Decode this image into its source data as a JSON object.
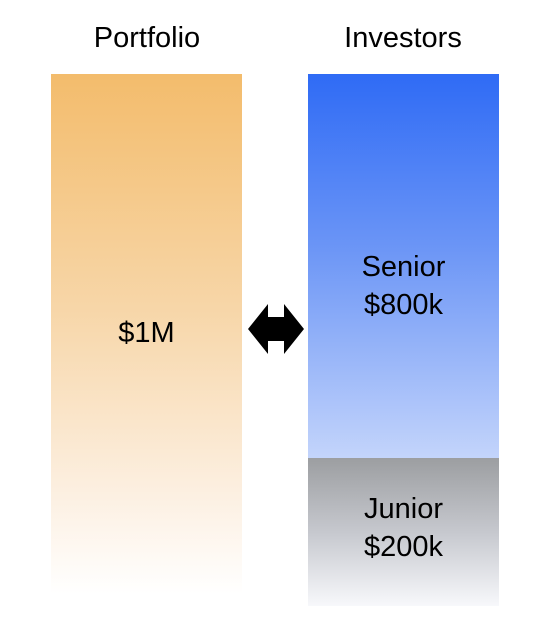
{
  "portfolio": {
    "heading": "Portfolio",
    "value": "$1M"
  },
  "investors": {
    "heading": "Investors",
    "senior": {
      "name": "Senior",
      "value": "$800k"
    },
    "junior": {
      "name": "Junior",
      "value": "$200k"
    }
  },
  "colors": {
    "portfolio_top": "#f3bc6c",
    "senior_top": "#2f6bf5",
    "junior_top": "#9c9ea1",
    "arrow": "#000000"
  },
  "icons": {
    "connector": "double-headed-arrow-icon"
  }
}
